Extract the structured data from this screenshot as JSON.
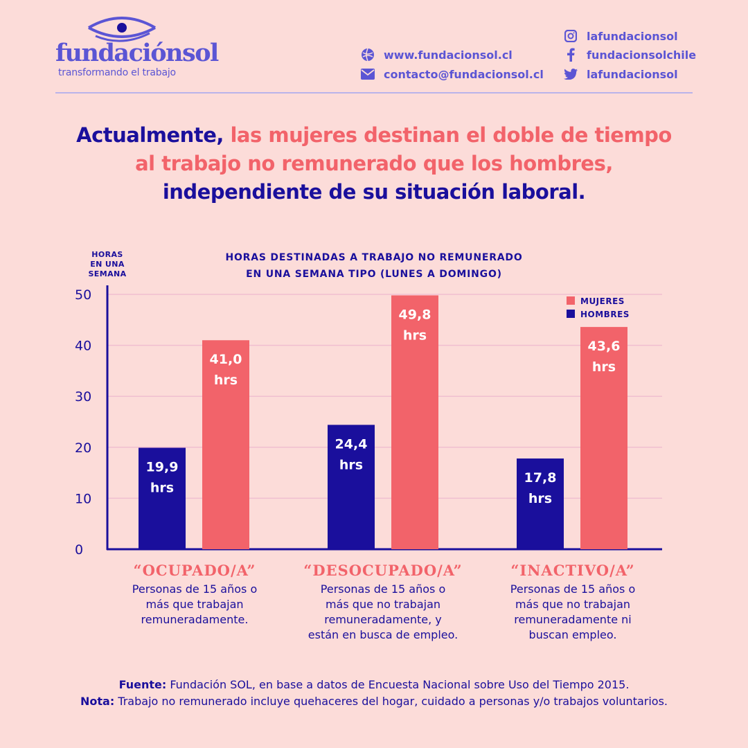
{
  "brand": {
    "name": "fundaciónsol",
    "tagline": "transformando el trabajo",
    "color": "#5b55d4"
  },
  "contacts": {
    "web": "www.fundacionsol.cl",
    "email": "contacto@fundacionsol.cl",
    "instagram": "lafundacionsol",
    "facebook": "fundacionsolchile",
    "twitter": "lafundacionsol"
  },
  "headline": {
    "part1": "Actualmente,",
    "part2": "las mujeres destinan el doble de tiempo",
    "part3": "al trabajo no remunerado que los hombres,",
    "part4": "independiente de su situación laboral."
  },
  "chart_data": {
    "type": "bar",
    "title": "HORAS DESTINADAS A TRABAJO NO REMUNERADO\nEN UNA SEMANA TIPO (LUNES A DOMINGO)",
    "ylabel": "HORAS\nEN UNA\nSEMANA",
    "ylim": [
      0,
      50
    ],
    "yticks": [
      "0",
      "10",
      "20",
      "30",
      "40",
      "50"
    ],
    "grid": true,
    "legend_position": "top-right",
    "categories": [
      "“OCUPADO/A”",
      "“DESOCUPADO/A”",
      "“INACTIVO/A”"
    ],
    "series": [
      {
        "name": "HOMBRES",
        "color": "#1a0f9c",
        "values": [
          19.9,
          24.4,
          17.8
        ],
        "labels": [
          "19,9",
          "24,4",
          "17,8"
        ]
      },
      {
        "name": "MUJERES",
        "color": "#f2636a",
        "values": [
          41.0,
          49.8,
          43.6
        ],
        "labels": [
          "41,0",
          "49,8",
          "43,6"
        ]
      }
    ],
    "unit_label": "hrs",
    "legend_order": [
      "MUJERES",
      "HOMBRES"
    ],
    "category_descriptions": [
      "Personas de 15 años o\nmás que trabajan\nremuneradamente.",
      "Personas de 15 años o\nmás que no trabajan\nremuneradamente, y\nestán en busca de empleo.",
      "Personas de 15 años o\nmás que no trabajan\nremuneradamente ni\nbuscan empleo."
    ]
  },
  "footer": {
    "source_label": "Fuente:",
    "source_text": " Fundación SOL, en base a datos de Encuesta Nacional sobre Uso del Tiempo 2015.",
    "note_label": "Nota:",
    "note_text": " Trabajo no remunerado incluye quehaceres del hogar, cuidado a personas y/o trabajos voluntarios."
  },
  "colors": {
    "background": "#fcdcd9",
    "navy": "#1a0f9c",
    "coral": "#f2636a",
    "grid": "#f0bfd0"
  }
}
